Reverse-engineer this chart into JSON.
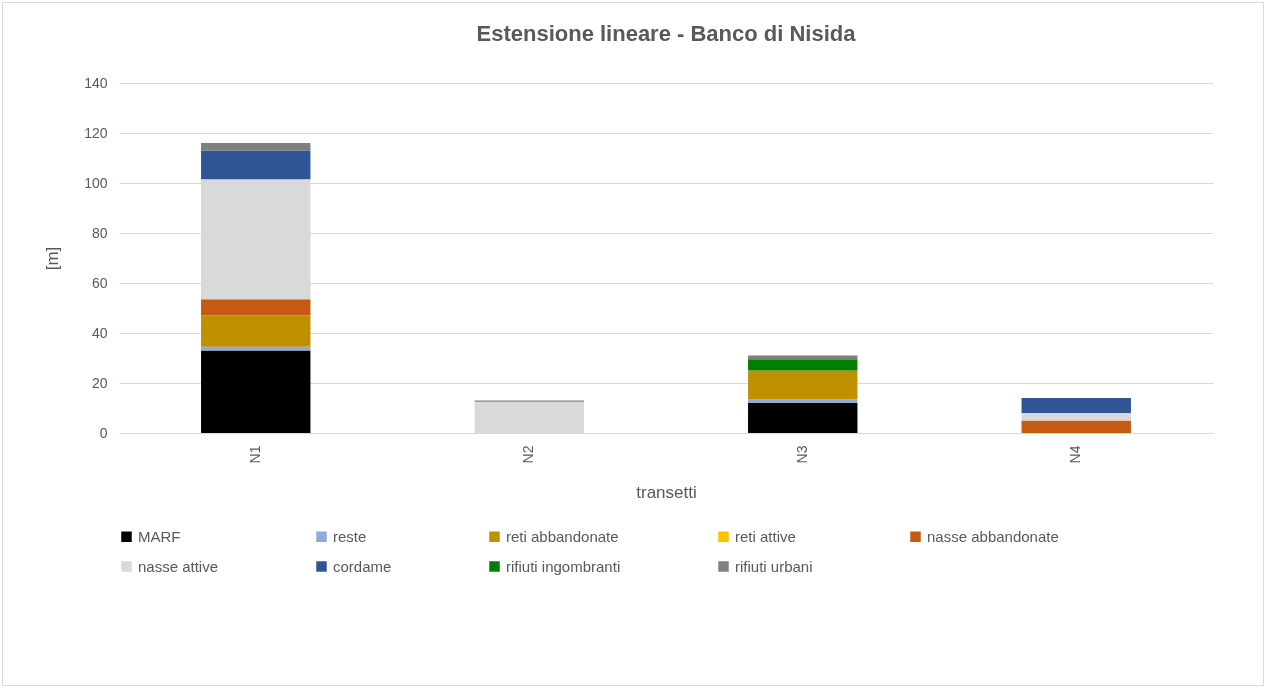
{
  "chart_data": {
    "type": "bar",
    "title": "Estensione lineare - Banco di Nisida",
    "xlabel": "transetti",
    "ylabel": "[m]",
    "categories": [
      "N1",
      "N2",
      "N3",
      "N4"
    ],
    "stacked": true,
    "ylim": [
      0,
      140
    ],
    "yticks": [
      0,
      20,
      40,
      60,
      80,
      100,
      120,
      140
    ],
    "grid": "y",
    "legend": "bottom",
    "series": [
      {
        "name": "MARF",
        "color": "#000000",
        "values": [
          33,
          null,
          12,
          null
        ]
      },
      {
        "name": "reste",
        "color": "#8faadc",
        "values": [
          1.5,
          null,
          1.5,
          null
        ]
      },
      {
        "name": "reti abbandonate",
        "color": "#bf9000",
        "values": [
          12.5,
          null,
          11.5,
          null
        ]
      },
      {
        "name": "reti attive",
        "color": "#ffc000",
        "values": [
          null,
          null,
          null,
          null
        ]
      },
      {
        "name": "nasse abbandonate",
        "color": "#c55a11",
        "values": [
          6.5,
          null,
          null,
          5
        ]
      },
      {
        "name": "nasse attive",
        "color": "#d9d9d9",
        "values": [
          48,
          12.5,
          null,
          3
        ]
      },
      {
        "name": "cordame",
        "color": "#2f5597",
        "values": [
          11.5,
          null,
          null,
          6
        ]
      },
      {
        "name": "rifiuti ingombranti",
        "color": "#008000",
        "values": [
          null,
          null,
          4.5,
          null
        ]
      },
      {
        "name": "rifiuti urbani",
        "color": "#7f7f7f",
        "values": [
          3,
          0.5,
          1.5,
          null
        ]
      }
    ]
  }
}
